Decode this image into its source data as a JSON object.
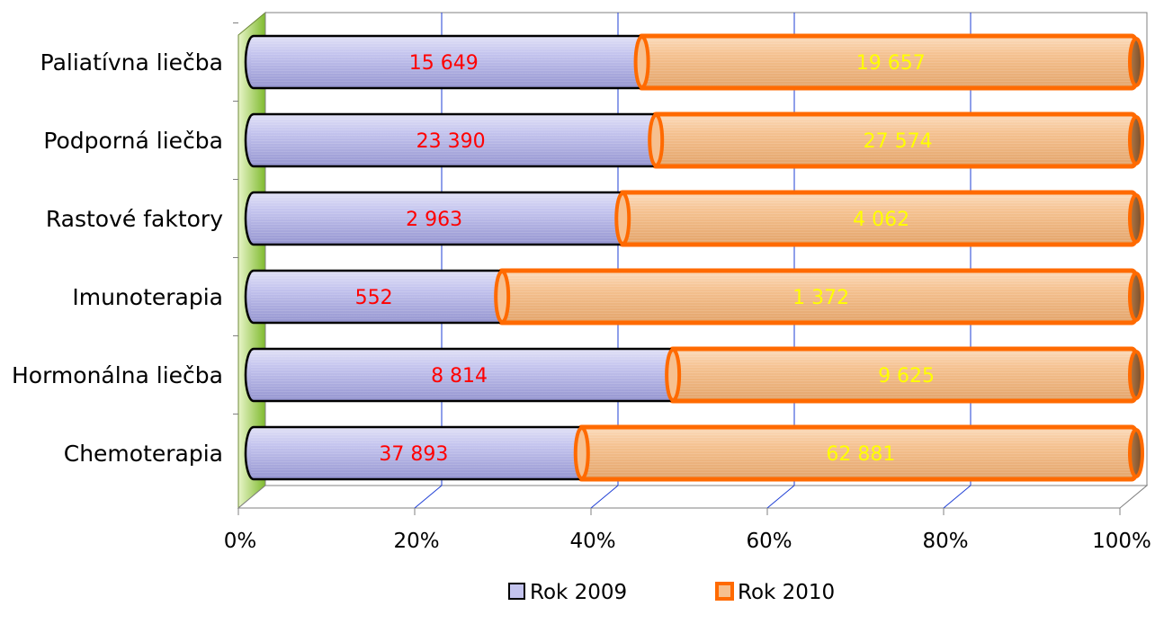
{
  "chart_data": {
    "type": "bar",
    "orientation": "horizontal",
    "stacking": "percent",
    "style": "3d-cylinder",
    "categories": [
      "Paliatívna liečba",
      "Podporná liečba",
      "Rastové faktory",
      "Imunoterapia",
      "Hormonálna liečba",
      "Chemoterapia"
    ],
    "series": [
      {
        "name": "Rok 2009",
        "values": [
          15649,
          23390,
          2963,
          552,
          8814,
          37893
        ],
        "labels": [
          "15 649",
          "23 390",
          "2 963",
          "552",
          "8 814",
          "37 893"
        ],
        "color": "#b3b3e6",
        "border_color": "#000000",
        "label_color": "#ff0000"
      },
      {
        "name": "Rok 2010",
        "values": [
          19657,
          27574,
          4062,
          1372,
          9625,
          62881
        ],
        "labels": [
          "19 657",
          "27 574",
          "4 062",
          "1 372",
          "9 625",
          "62 881"
        ],
        "color": "#f6c08f",
        "border_color": "#ff6a00",
        "label_color": "#ffff00"
      }
    ],
    "x_ticks": [
      "0%",
      "20%",
      "40%",
      "60%",
      "80%",
      "100%"
    ],
    "xlim": [
      0,
      100
    ],
    "grid": true,
    "grid_color": "#1f3fd6",
    "wall_color": "#8cc63f",
    "legend": "bottom",
    "title": "",
    "xlabel": "",
    "ylabel": ""
  }
}
